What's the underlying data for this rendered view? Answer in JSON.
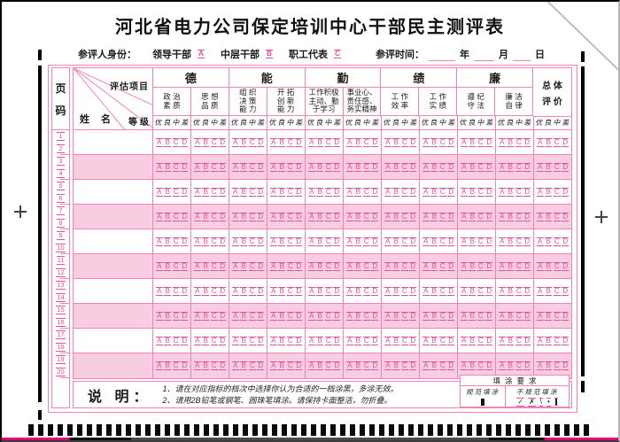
{
  "title": "河北省电力公司保定培训中心干部民主测评表",
  "identity_row": {
    "label": "参评人身份：",
    "options": [
      {
        "label": "领导干部",
        "bubble": "A"
      },
      {
        "label": "中层干部",
        "bubble": "B"
      },
      {
        "label": "职工代表",
        "bubble": "C"
      }
    ],
    "time_label": "参评时间：",
    "time_units": [
      "年",
      "月",
      "日"
    ]
  },
  "table": {
    "page_col_chars": [
      "页",
      "码"
    ],
    "page_numbers": [
      "1",
      "2",
      "3",
      "4",
      "5",
      "6",
      "7",
      "8",
      "9",
      "10",
      "11",
      "12",
      "13",
      "14",
      "15",
      "16",
      "17",
      "18",
      "19",
      "20"
    ],
    "corner": {
      "top": "评估项目",
      "left": "姓名",
      "right": "等级"
    },
    "categories": [
      {
        "label": "德",
        "items": [
          {
            "name": "政治素质",
            "lines": [
              "政 治",
              "素 质"
            ]
          },
          {
            "name": "思想品质",
            "lines": [
              "思 想",
              "品 质"
            ]
          }
        ]
      },
      {
        "label": "能",
        "items": [
          {
            "name": "组织决策能力",
            "lines": [
              "组 织",
              "决 策",
              "能 力"
            ]
          },
          {
            "name": "开拓创新能力",
            "lines": [
              "开 拓",
              "创 新",
              "能 力"
            ]
          }
        ]
      },
      {
        "label": "勤",
        "items": [
          {
            "name": "工作积极主动、勤于学习",
            "lines": [
              "工作积极",
              "主动、勤",
              "于学习"
            ]
          },
          {
            "name": "事业心、责任感、务实精神",
            "lines": [
              "事业心、",
              "责任感、",
              "务实精神"
            ]
          }
        ]
      },
      {
        "label": "绩",
        "items": [
          {
            "name": "工作效率",
            "lines": [
              "工 作",
              "效 率"
            ]
          },
          {
            "name": "工作实绩",
            "lines": [
              "工 作",
              "实 绩"
            ]
          }
        ]
      },
      {
        "label": "廉",
        "items": [
          {
            "name": "遵纪守法",
            "lines": [
              "遵 纪",
              "守 法"
            ]
          },
          {
            "name": "廉洁自律",
            "lines": [
              "廉 洁",
              "自 律"
            ]
          }
        ]
      }
    ],
    "overall_label": "总体评价",
    "overall_lines": [
      "总 体",
      "评 价"
    ],
    "grade_scale": [
      "优",
      "良",
      "中",
      "差"
    ],
    "bubble_options": [
      "A",
      "B",
      "C",
      "D"
    ],
    "row_count": 10
  },
  "instructions": {
    "heading": "说 明：",
    "lines": [
      "1、请在对应指标的档次中选择你认为合适的一档涂黑，多涂无效。",
      "2、请用2B铅笔或钢笔、圆珠笔填涂。请保持卡面整洁，勿折叠。"
    ]
  },
  "fill_requirements": {
    "title": "填涂要求",
    "standard_label": "规范填涂",
    "nonstandard_label": "不规范填涂",
    "nonstandard_marks": [
      "✓",
      "✗",
      "\\",
      "•"
    ]
  },
  "colors": {
    "pink_border": "#f183ba",
    "pink_fill": "#f8cde2",
    "bubble_pink": "#e0509c"
  }
}
